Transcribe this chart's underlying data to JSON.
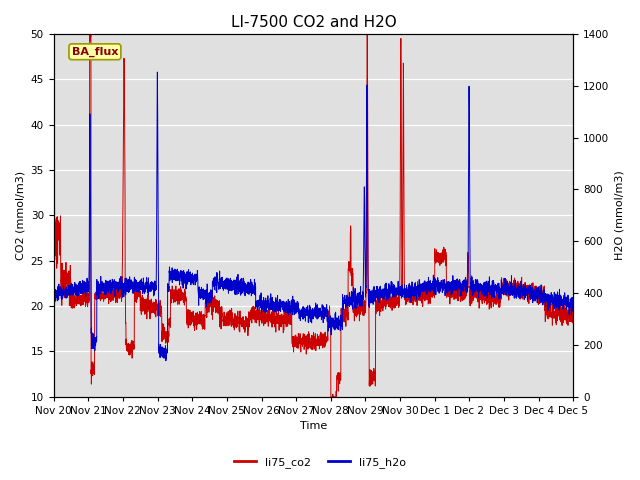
{
  "title": "LI-7500 CO2 and H2O",
  "xlabel": "Time",
  "ylabel_left": "CO2 (mmol/m3)",
  "ylabel_right": "H2O (mmol/m3)",
  "legend_labels": [
    "li75_co2",
    "li75_h2o"
  ],
  "co2_color": "#cc0000",
  "h2o_color": "#0000cc",
  "co2_linewidth": 0.7,
  "h2o_linewidth": 0.7,
  "ylim_left": [
    10,
    50
  ],
  "ylim_right": [
    0,
    1400
  ],
  "yticks_left": [
    10,
    15,
    20,
    25,
    30,
    35,
    40,
    45,
    50
  ],
  "yticks_right": [
    0,
    200,
    400,
    600,
    800,
    1000,
    1200,
    1400
  ],
  "plot_bg_color": "#e0e0e0",
  "fig_bg_color": "#ffffff",
  "box_facecolor": "#ffffaa",
  "box_text": "BA_flux",
  "box_edgecolor": "#999900",
  "box_textcolor": "#880000",
  "title_fontsize": 11,
  "label_fontsize": 8,
  "tick_fontsize": 7.5,
  "legend_fontsize": 8,
  "n_points": 3600,
  "x_tick_labels": [
    "Nov 20",
    "Nov 21",
    "Nov 22",
    "Nov 23",
    "Nov 24",
    "Nov 25",
    "Nov 26",
    "Nov 27",
    "Nov 28",
    "Nov 29",
    "Nov 30",
    "Dec 1",
    "Dec 2",
    "Dec 3",
    "Dec 4",
    "Dec 5"
  ],
  "x_tick_positions": [
    0,
    240,
    480,
    720,
    960,
    1200,
    1440,
    1680,
    1920,
    2160,
    2400,
    2640,
    2880,
    3120,
    3360,
    3600
  ]
}
